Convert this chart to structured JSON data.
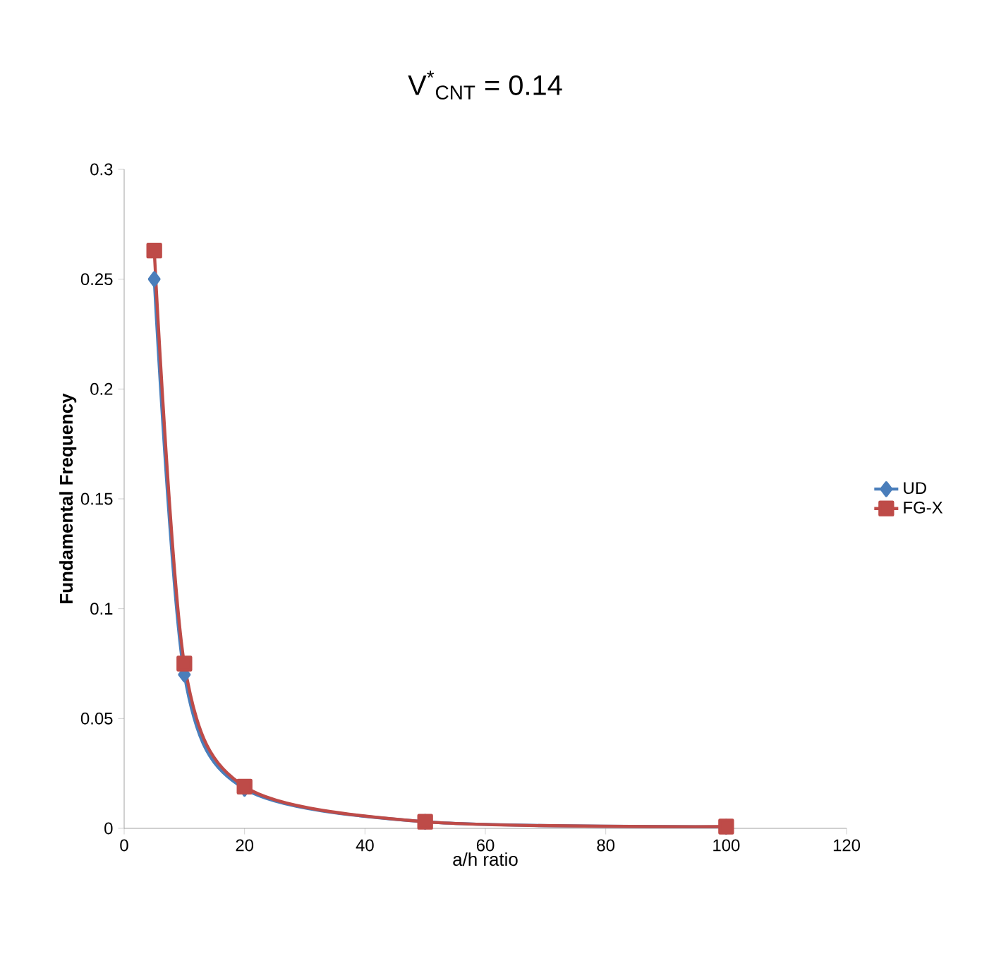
{
  "chart_data": {
    "type": "line",
    "title": "V$^{*}$$_{CNT}$ = 0.14",
    "xlabel": "a/h ratio",
    "ylabel": "Fundamental  Frequency",
    "x": [
      5,
      10,
      20,
      50,
      100
    ],
    "series": [
      {
        "name": "UD",
        "color": "#4a7ebb",
        "marker": "diamond",
        "values": [
          0.25,
          0.07,
          0.018,
          0.003,
          0.0007
        ]
      },
      {
        "name": "FG-X",
        "color": "#be4b48",
        "marker": "square",
        "values": [
          0.263,
          0.075,
          0.019,
          0.003,
          0.0008
        ]
      }
    ],
    "xlim": [
      0,
      120
    ],
    "xticks": [
      0,
      20,
      40,
      60,
      80,
      100,
      120
    ],
    "ylim": [
      0,
      0.3
    ],
    "yticks": [
      0,
      0.05,
      0.1,
      0.15,
      0.2,
      0.25,
      0.3
    ],
    "legend": "right",
    "grid": false
  }
}
